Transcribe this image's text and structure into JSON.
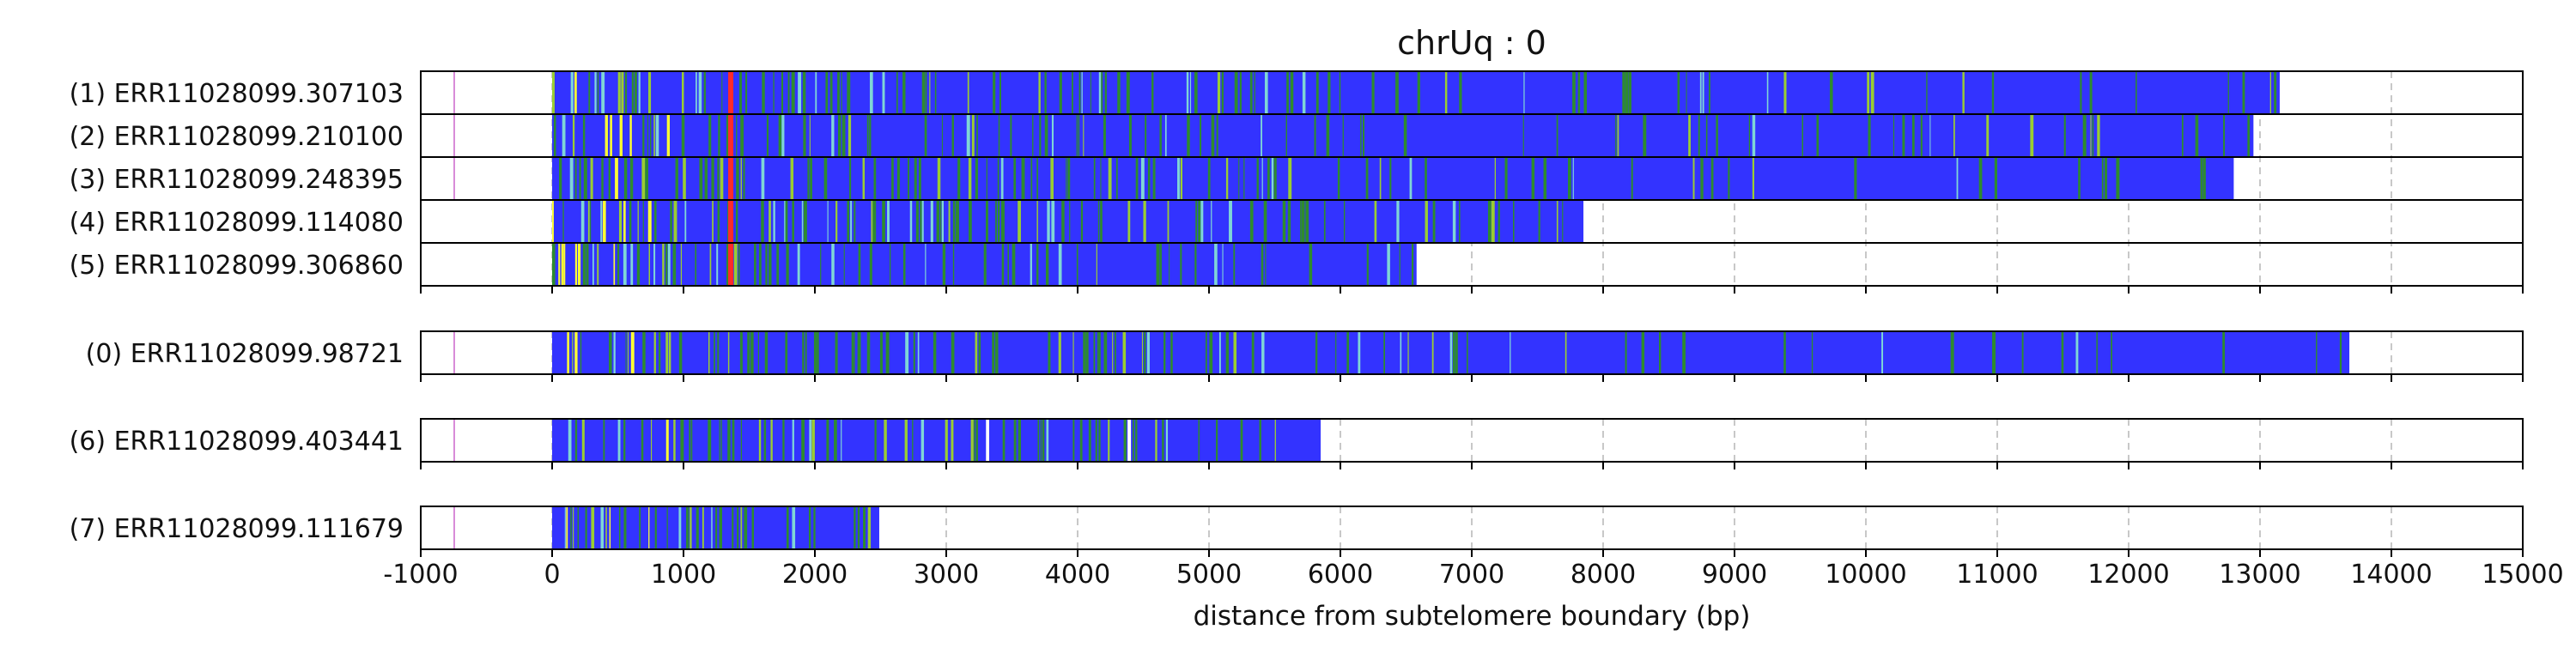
{
  "chart_data": {
    "type": "track",
    "title": "chrUq : 0",
    "xlabel": "distance from subtelomere boundary (bp)",
    "xlim": [
      -1000,
      15000
    ],
    "xticks": [
      -1000,
      0,
      1000,
      2000,
      3000,
      4000,
      5000,
      6000,
      7000,
      8000,
      9000,
      10000,
      11000,
      12000,
      13000,
      14000,
      15000
    ],
    "xtick_labels": [
      "-1000",
      "0",
      "1000",
      "2000",
      "3000",
      "4000",
      "5000",
      "6000",
      "7000",
      "8000",
      "9000",
      "10000",
      "11000",
      "12000",
      "13000",
      "14000",
      "15000"
    ],
    "grid": "vertical dashed",
    "colors": {
      "repeat": "#3333ff",
      "variant_green": "#2e8b2e",
      "variant_lightgreen": "#9acd32",
      "variant_yellow": "#ffff33",
      "variant_red": "#ff2a2a",
      "variant_cyan": "#7fd6d6",
      "variant_magenta": "#cc66cc",
      "gap": "#ffffff"
    },
    "groups": [
      {
        "reads": [
          {
            "label": "(1) ERR11028099.307103",
            "start": 0,
            "end": 13150,
            "marker": -750
          },
          {
            "label": "(2) ERR11028099.210100",
            "start": 0,
            "end": 12950,
            "marker": -750
          },
          {
            "label": "(3) ERR11028099.248395",
            "start": 0,
            "end": 12800,
            "marker": -750
          },
          {
            "label": "(4) ERR11028099.114080",
            "start": 0,
            "end": 7850
          },
          {
            "label": "(5) ERR11028099.306860",
            "start": 0,
            "end": 6580
          }
        ]
      },
      {
        "reads": [
          {
            "label": "(0) ERR11028099.98721",
            "start": 0,
            "end": 13680,
            "marker": -750
          }
        ]
      },
      {
        "reads": [
          {
            "label": "(6) ERR11028099.403441",
            "start": 0,
            "end": 5850,
            "marker": -750
          }
        ]
      },
      {
        "reads": [
          {
            "label": "(7) ERR11028099.111679",
            "start": 0,
            "end": 2490,
            "marker": -750
          }
        ]
      }
    ]
  }
}
